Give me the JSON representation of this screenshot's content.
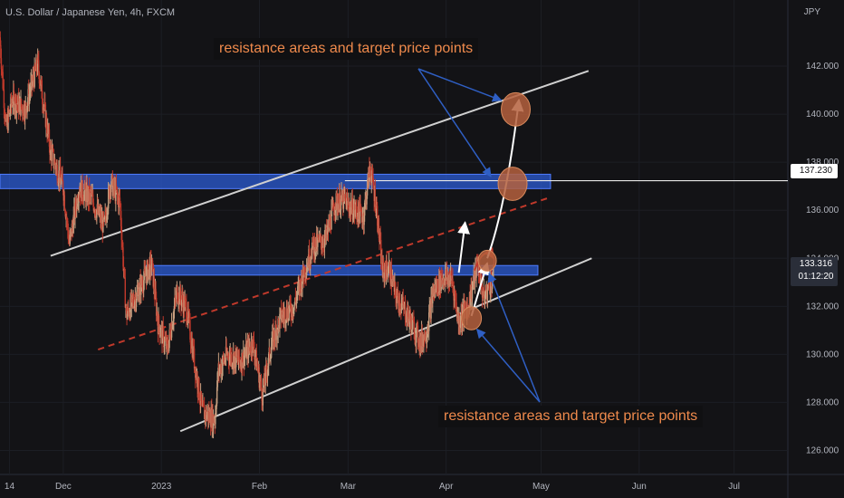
{
  "title": "U.S. Dollar / Japanese Yen, 4h, FXCM",
  "unit": "JPY",
  "annotations": {
    "top": "resistance areas and target price points",
    "bottom": "resistance areas and target price points"
  },
  "price_labels": {
    "resistance": "137.230",
    "current": "133.316",
    "countdown": "01:12:20"
  },
  "colors": {
    "background": "#131316",
    "up_candle": "#c9a080",
    "down_candle": "#c0392b",
    "zone": "#2c5cd4",
    "channel": "#d0d0d0",
    "midline": "#c0392b",
    "target": "#b5603d",
    "arrow_blue": "#2f5fc4"
  },
  "chart_data": {
    "type": "candlestick",
    "title": "U.S. Dollar / Japanese Yen, 4h, FXCM",
    "ylabel": "JPY",
    "ylim": [
      125,
      144
    ],
    "y_ticks": [
      126,
      128,
      130,
      132,
      134,
      136,
      138,
      140,
      142
    ],
    "y_tick_labels": [
      "126.000",
      "128.000",
      "130.000",
      "132.000",
      "134.000",
      "136.000",
      "138.000",
      "140.000",
      "142.000"
    ],
    "x_tick_labels": [
      "14",
      "Dec",
      "2023",
      "Feb",
      "Mar",
      "Apr",
      "May",
      "Jun",
      "Jul"
    ],
    "x_tick_dates": [
      "2022-11-14",
      "2022-12-01",
      "2023-01-01",
      "2023-02-01",
      "2023-03-01",
      "2023-04-01",
      "2023-05-01",
      "2023-06-01",
      "2023-07-01"
    ],
    "xlim": [
      "2022-11-11",
      "2023-07-18"
    ],
    "price_path": [
      [
        "2022-11-11",
        143.2
      ],
      [
        "2022-11-13",
        139.4
      ],
      [
        "2022-11-15",
        140.6
      ],
      [
        "2022-11-19",
        140.2
      ],
      [
        "2022-11-23",
        142.1
      ],
      [
        "2022-11-27",
        138.5
      ],
      [
        "2022-12-01",
        137.0
      ],
      [
        "2022-12-03",
        134.6
      ],
      [
        "2022-12-06",
        136.9
      ],
      [
        "2022-12-10",
        136.5
      ],
      [
        "2022-12-14",
        135.3
      ],
      [
        "2022-12-16",
        137.2
      ],
      [
        "2022-12-19",
        136.3
      ],
      [
        "2022-12-21",
        131.6
      ],
      [
        "2022-12-25",
        132.7
      ],
      [
        "2022-12-29",
        133.8
      ],
      [
        "2022-12-31",
        131.3
      ],
      [
        "2023-01-03",
        130.2
      ],
      [
        "2023-01-06",
        132.6
      ],
      [
        "2023-01-09",
        131.9
      ],
      [
        "2023-01-12",
        129.3
      ],
      [
        "2023-01-14",
        127.6
      ],
      [
        "2023-01-18",
        127.3
      ],
      [
        "2023-01-19",
        129.3
      ],
      [
        "2023-01-22",
        130.0
      ],
      [
        "2023-01-26",
        129.7
      ],
      [
        "2023-01-30",
        130.5
      ],
      [
        "2023-02-02",
        128.3
      ],
      [
        "2023-02-05",
        130.5
      ],
      [
        "2023-02-08",
        131.6
      ],
      [
        "2023-02-12",
        132.0
      ],
      [
        "2023-02-15",
        133.4
      ],
      [
        "2023-02-18",
        134.5
      ],
      [
        "2023-02-22",
        134.8
      ],
      [
        "2023-02-25",
        136.3
      ],
      [
        "2023-02-28",
        136.4
      ],
      [
        "2023-03-03",
        136.0
      ],
      [
        "2023-03-06",
        135.8
      ],
      [
        "2023-03-08",
        137.8
      ],
      [
        "2023-03-10",
        136.2
      ],
      [
        "2023-03-12",
        133.4
      ],
      [
        "2023-03-14",
        133.6
      ],
      [
        "2023-03-16",
        132.5
      ],
      [
        "2023-03-20",
        131.6
      ],
      [
        "2023-03-24",
        130.5
      ],
      [
        "2023-03-26",
        131.0
      ],
      [
        "2023-03-28",
        132.6
      ],
      [
        "2023-03-31",
        133.2
      ],
      [
        "2023-04-03",
        133.1
      ],
      [
        "2023-04-05",
        131.4
      ],
      [
        "2023-04-08",
        132.0
      ],
      [
        "2023-04-11",
        133.8
      ],
      [
        "2023-04-13",
        132.3
      ],
      [
        "2023-04-16",
        133.3
      ]
    ],
    "resistance_zones": [
      {
        "from": "2022-11-11",
        "to": "2023-05-04",
        "low": 136.9,
        "high": 137.5
      },
      {
        "from": "2022-12-27",
        "to": "2023-04-30",
        "low": 133.3,
        "high": 133.7
      }
    ],
    "horizontal_lines": [
      {
        "from": "2023-02-28",
        "to": "2023-07-18",
        "value": 137.23
      }
    ],
    "channel": {
      "upper": [
        [
          "2022-11-27",
          134.1
        ],
        [
          "2023-05-16",
          141.8
        ]
      ],
      "lower": [
        [
          "2023-01-07",
          126.8
        ],
        [
          "2023-05-17",
          134.0
        ]
      ],
      "mid_dashed": [
        [
          "2022-12-12",
          130.2
        ],
        [
          "2023-05-03",
          136.5
        ]
      ]
    },
    "targets": [
      {
        "date": "2023-04-23",
        "value": 140.2
      },
      {
        "date": "2023-04-22",
        "value": 137.1
      },
      {
        "date": "2023-04-14",
        "value": 133.9
      },
      {
        "date": "2023-04-09",
        "value": 131.5
      }
    ],
    "projection": {
      "red_curve": [
        [
          "2023-04-10",
          133.5
        ],
        [
          "2023-04-13",
          134.6
        ],
        [
          "2023-04-16",
          134.0
        ]
      ],
      "white_up_1": [
        [
          "2023-04-05",
          133.4
        ],
        [
          "2023-04-07",
          135.5
        ]
      ],
      "white_up_2": [
        [
          "2023-04-09",
          131.6
        ],
        [
          "2023-04-14",
          133.8
        ]
      ],
      "white_curve": [
        [
          "2023-04-14",
          134.0
        ],
        [
          "2023-04-20",
          136.2
        ],
        [
          "2023-04-24",
          140.6
        ]
      ]
    },
    "current_price": 133.316
  }
}
